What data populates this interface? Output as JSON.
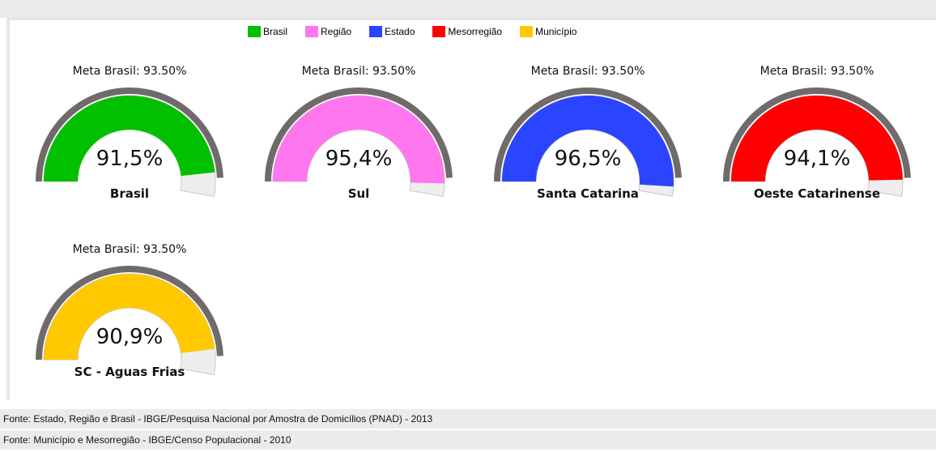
{
  "legend": [
    {
      "label": "Brasil",
      "color": "#00c000"
    },
    {
      "label": "Região",
      "color": "#ff77ee"
    },
    {
      "label": "Estado",
      "color": "#2a44ff"
    },
    {
      "label": "Mesorregião",
      "color": "#ff0000"
    },
    {
      "label": "Município",
      "color": "#ffc800"
    }
  ],
  "chart_data": {
    "type": "gauge",
    "range": [
      0,
      100
    ],
    "unit": "%",
    "gauges": [
      {
        "name": "Brasil",
        "value": 91.5,
        "value_label": "91,5%",
        "meta_label": "Meta Brasil: 93.50%",
        "meta": 93.5,
        "color": "#00c000"
      },
      {
        "name": "Sul",
        "value": 95.4,
        "value_label": "95,4%",
        "meta_label": "Meta Brasil: 93.50%",
        "meta": 93.5,
        "color": "#ff77ee"
      },
      {
        "name": "Santa Catarina",
        "value": 96.5,
        "value_label": "96,5%",
        "meta_label": "Meta Brasil: 93.50%",
        "meta": 93.5,
        "color": "#2a44ff"
      },
      {
        "name": "Oeste Catarinense",
        "value": 94.1,
        "value_label": "94,1%",
        "meta_label": "Meta Brasil: 93.50%",
        "meta": 93.5,
        "color": "#ff0000"
      },
      {
        "name": "SC - Aguas Frias",
        "value": 90.9,
        "value_label": "90,9%",
        "meta_label": "Meta Brasil: 93.50%",
        "meta": 93.5,
        "color": "#ffc800"
      }
    ]
  },
  "footer": {
    "line1": "Fonte: Estado, Região e Brasil - IBGE/Pesquisa Nacional por Amostra de Domicílios (PNAD) - 2013",
    "line2": "Fonte: Município e Mesorregião - IBGE/Censo Populacional - 2010"
  }
}
